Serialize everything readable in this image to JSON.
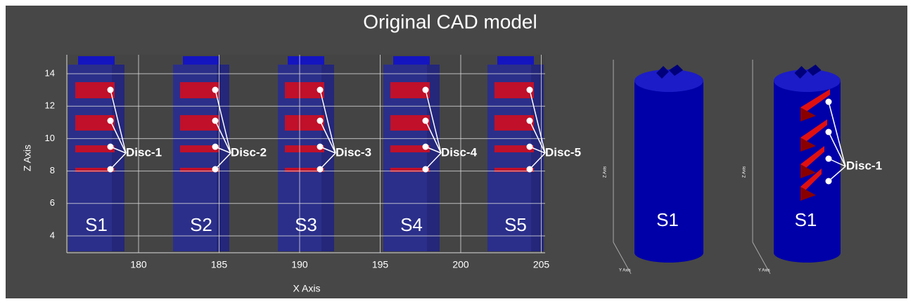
{
  "title": "Original CAD model",
  "left_plot": {
    "x_axis_label": "X Axis",
    "z_axis_label": "Z Axis",
    "x_ticks": [
      180,
      185,
      190,
      195,
      200,
      205
    ],
    "z_ticks": [
      14,
      12,
      10,
      8,
      6,
      4
    ],
    "samples": [
      {
        "label": "S1",
        "disc_label": "Disc-1"
      },
      {
        "label": "S2",
        "disc_label": "Disc-2"
      },
      {
        "label": "S3",
        "disc_label": "Disc-3"
      },
      {
        "label": "S4",
        "disc_label": "Disc-4"
      },
      {
        "label": "S5",
        "disc_label": "Disc-5"
      }
    ]
  },
  "right_views": [
    {
      "label": "S1",
      "z_axis_label": "Z Axis",
      "y_axis_label": "Y Axis"
    },
    {
      "label": "S1",
      "disc_label": "Disc-1",
      "z_axis_label": "Z Axis",
      "y_axis_label": "Y Axis"
    }
  ]
}
